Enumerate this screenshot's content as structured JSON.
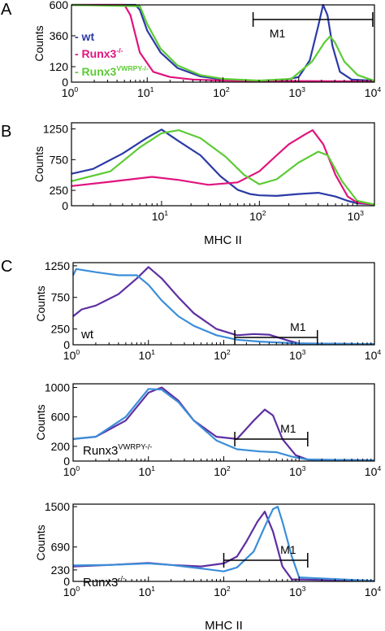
{
  "chart_data": [
    {
      "panel": "A",
      "type": "line",
      "xscale": "log",
      "xlim": [
        1,
        10000
      ],
      "ylim": [
        0,
        600
      ],
      "xticks": [
        "10",
        "10",
        "10",
        "10",
        "10"
      ],
      "xtick_exponents": [
        "0",
        "1",
        "2",
        "3",
        "4"
      ],
      "yticks": [
        0,
        120,
        360,
        600
      ],
      "ylabel": "Counts",
      "xlabel": "",
      "legend_position": "left",
      "gate": {
        "label": "M1",
        "from": 250,
        "to": 9500
      },
      "series": [
        {
          "name": "wt",
          "name_sup": "",
          "color": "#2b3aa6",
          "x": [
            1,
            7,
            8,
            10,
            15,
            25,
            50,
            100,
            300,
            600,
            1000,
            1400,
            1800,
            2100,
            2400,
            2800,
            3500,
            5000,
            10000
          ],
          "y": [
            600,
            600,
            560,
            400,
            230,
            110,
            45,
            20,
            10,
            12,
            40,
            170,
            430,
            600,
            520,
            280,
            80,
            20,
            10
          ]
        },
        {
          "name": "Runx3",
          "name_sup": "-/-",
          "color": "#e0147e",
          "x": [
            1,
            5,
            6,
            8,
            12,
            20,
            40,
            100,
            500,
            1000,
            10000
          ],
          "y": [
            600,
            600,
            520,
            230,
            80,
            40,
            20,
            12,
            8,
            8,
            5
          ]
        },
        {
          "name": "Runx3",
          "name_sup": "VWRPY-/-",
          "color": "#5ccb35",
          "x": [
            1,
            8,
            10,
            15,
            25,
            50,
            100,
            300,
            800,
            1500,
            2200,
            2600,
            3000,
            4000,
            6000,
            10000
          ],
          "y": [
            600,
            590,
            450,
            260,
            130,
            55,
            25,
            12,
            25,
            160,
            310,
            355,
            310,
            160,
            55,
            10
          ]
        }
      ]
    },
    {
      "panel": "B",
      "type": "line",
      "xscale": "log",
      "xlim": [
        1.2,
        1500
      ],
      "ylim": [
        0,
        1350
      ],
      "xticks": [
        "10",
        "10",
        "10"
      ],
      "xtick_exponents": [
        "1",
        "2",
        "3"
      ],
      "yticks": [
        0,
        250,
        750,
        1250
      ],
      "ylabel": "Counts",
      "xlabel": "MHC II",
      "series": [
        {
          "name": "",
          "color": "#2b3aa6",
          "x": [
            1.2,
            2,
            4,
            7,
            10,
            15,
            25,
            40,
            60,
            80,
            100,
            150,
            250,
            400,
            600,
            800,
            1000,
            1500
          ],
          "y": [
            520,
            600,
            850,
            1100,
            1240,
            1050,
            820,
            480,
            260,
            190,
            170,
            160,
            190,
            210,
            150,
            80,
            40,
            20
          ]
        },
        {
          "name": "",
          "color": "#e0147e",
          "x": [
            1.2,
            3,
            8,
            15,
            30,
            60,
            100,
            150,
            200,
            300,
            350,
            450,
            600,
            800,
            1000,
            1500
          ],
          "y": [
            320,
            390,
            470,
            420,
            340,
            380,
            560,
            820,
            1000,
            1170,
            1230,
            1000,
            500,
            150,
            50,
            20
          ]
        },
        {
          "name": "",
          "color": "#5ccb35",
          "x": [
            1.2,
            3,
            6,
            10,
            15,
            25,
            45,
            70,
            100,
            150,
            250,
            400,
            500,
            700,
            1000,
            1500
          ],
          "y": [
            400,
            560,
            950,
            1180,
            1230,
            1100,
            800,
            500,
            350,
            430,
            700,
            880,
            820,
            400,
            80,
            20
          ]
        }
      ]
    },
    {
      "panel": "C",
      "sample": "wt",
      "type": "line",
      "xscale": "log",
      "xlim": [
        1,
        10000
      ],
      "ylim": [
        0,
        1300
      ],
      "xticks": [
        "10",
        "10",
        "10",
        "10",
        "10"
      ],
      "xtick_exponents": [
        "0",
        "1",
        "2",
        "3",
        "4"
      ],
      "yticks": [
        0,
        250,
        750,
        1250
      ],
      "ylabel": "Counts",
      "xlabel": "",
      "gate": {
        "label": "M1",
        "from": 140,
        "to": 1750
      },
      "series": [
        {
          "name": "",
          "color": "#5e2fa2",
          "x": [
            1,
            1.3,
            2,
            4,
            7,
            10,
            15,
            25,
            40,
            80,
            150,
            250,
            400,
            700,
            1000,
            10000
          ],
          "y": [
            450,
            560,
            620,
            800,
            1050,
            1230,
            1050,
            750,
            500,
            250,
            150,
            170,
            160,
            70,
            20,
            10
          ]
        },
        {
          "name": "",
          "color": "#3b8ed8",
          "x": [
            1,
            1.1,
            2,
            4,
            7,
            10,
            15,
            25,
            40,
            80,
            150,
            300,
            1000,
            10000
          ],
          "y": [
            1100,
            1200,
            1150,
            1100,
            1100,
            950,
            700,
            450,
            300,
            150,
            80,
            50,
            20,
            10
          ]
        }
      ]
    },
    {
      "panel": "C",
      "sample": "Runx3",
      "sample_sup": "VWRPY-/-",
      "type": "line",
      "xscale": "log",
      "xlim": [
        1,
        10000
      ],
      "ylim": [
        0,
        1050
      ],
      "xticks": [
        "10",
        "10",
        "10",
        "10",
        "10"
      ],
      "xtick_exponents": [
        "0",
        "1",
        "2",
        "3",
        "4"
      ],
      "yticks": [
        0,
        200,
        600,
        1000
      ],
      "ylabel": "Counts",
      "xlabel": "",
      "gate": {
        "label": "M1",
        "from": 140,
        "to": 1300
      },
      "series": [
        {
          "name": "",
          "color": "#5e2fa2",
          "x": [
            1,
            2,
            5,
            10,
            15,
            25,
            40,
            80,
            150,
            250,
            350,
            450,
            600,
            900,
            1300,
            10000
          ],
          "y": [
            300,
            330,
            550,
            930,
            1000,
            820,
            550,
            330,
            300,
            550,
            700,
            620,
            300,
            80,
            20,
            10
          ]
        },
        {
          "name": "",
          "color": "#3b8ed8",
          "x": [
            1,
            2,
            5,
            10,
            15,
            25,
            40,
            80,
            150,
            300,
            500,
            800,
            1300,
            10000
          ],
          "y": [
            300,
            330,
            600,
            980,
            970,
            800,
            550,
            280,
            160,
            130,
            120,
            60,
            20,
            10
          ]
        }
      ]
    },
    {
      "panel": "C",
      "sample": "Runx3",
      "sample_sup": "-/-",
      "type": "line",
      "xscale": "log",
      "xlim": [
        1,
        10000
      ],
      "ylim": [
        0,
        1550
      ],
      "xticks": [
        "10",
        "10",
        "10",
        "10",
        "10"
      ],
      "xtick_exponents": [
        "0",
        "1",
        "2",
        "3",
        "4"
      ],
      "yticks": [
        0,
        230,
        690,
        1500
      ],
      "ylabel": "Counts",
      "xlabel": "MHC II",
      "gate": {
        "label": "M1",
        "from": 100,
        "to": 1300
      },
      "series": [
        {
          "name": "",
          "color": "#5e2fa2",
          "x": [
            1,
            3,
            10,
            20,
            50,
            100,
            150,
            200,
            280,
            350,
            450,
            600,
            800,
            10000
          ],
          "y": [
            300,
            330,
            370,
            330,
            300,
            360,
            500,
            800,
            1200,
            1400,
            1000,
            300,
            40,
            10
          ]
        },
        {
          "name": "",
          "color": "#3b8ed8",
          "x": [
            1,
            3,
            10,
            20,
            50,
            100,
            150,
            250,
            350,
            450,
            520,
            600,
            800,
            1000,
            10000
          ],
          "y": [
            320,
            330,
            360,
            330,
            260,
            200,
            280,
            600,
            1100,
            1450,
            1500,
            1200,
            500,
            80,
            10
          ]
        }
      ]
    }
  ],
  "panel_labels": [
    "A",
    "B",
    "C"
  ]
}
